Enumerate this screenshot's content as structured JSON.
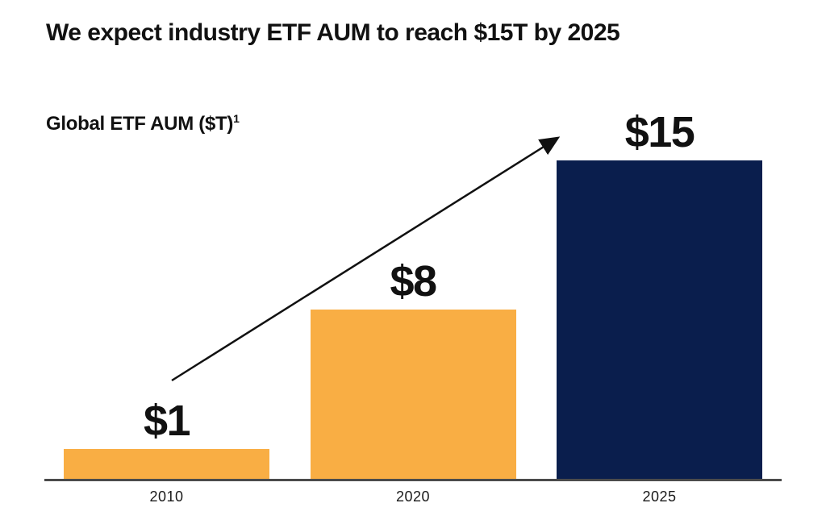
{
  "header": {
    "title": "We expect industry ETF AUM to reach $15T by 2025"
  },
  "chart": {
    "subtitle_text": "Global ETF AUM ($T)",
    "subtitle_superscript": "1"
  },
  "chart_data": {
    "type": "bar",
    "title": "We expect industry ETF AUM to reach $15T by 2025",
    "ylabel": "Global ETF AUM ($T)",
    "ylabel_footnote_marker": "1",
    "categories": [
      "2010",
      "2020",
      "2025"
    ],
    "values": [
      1,
      8,
      15
    ],
    "value_labels": [
      "$1",
      "$8",
      "$15"
    ],
    "bar_colors": [
      "#F9AE44",
      "#F9AE44",
      "#0A1E4D"
    ],
    "xlabel": "",
    "ylim": [
      0,
      15
    ],
    "grid": false,
    "legend": false,
    "annotations": [
      {
        "kind": "arrow",
        "from_category": "2010",
        "to_category": "2025",
        "color": "#111111"
      }
    ]
  },
  "colors": {
    "orange": "#F9AE44",
    "navy": "#0A1E4D",
    "axis": "#4b4b4b",
    "text": "#111111"
  }
}
